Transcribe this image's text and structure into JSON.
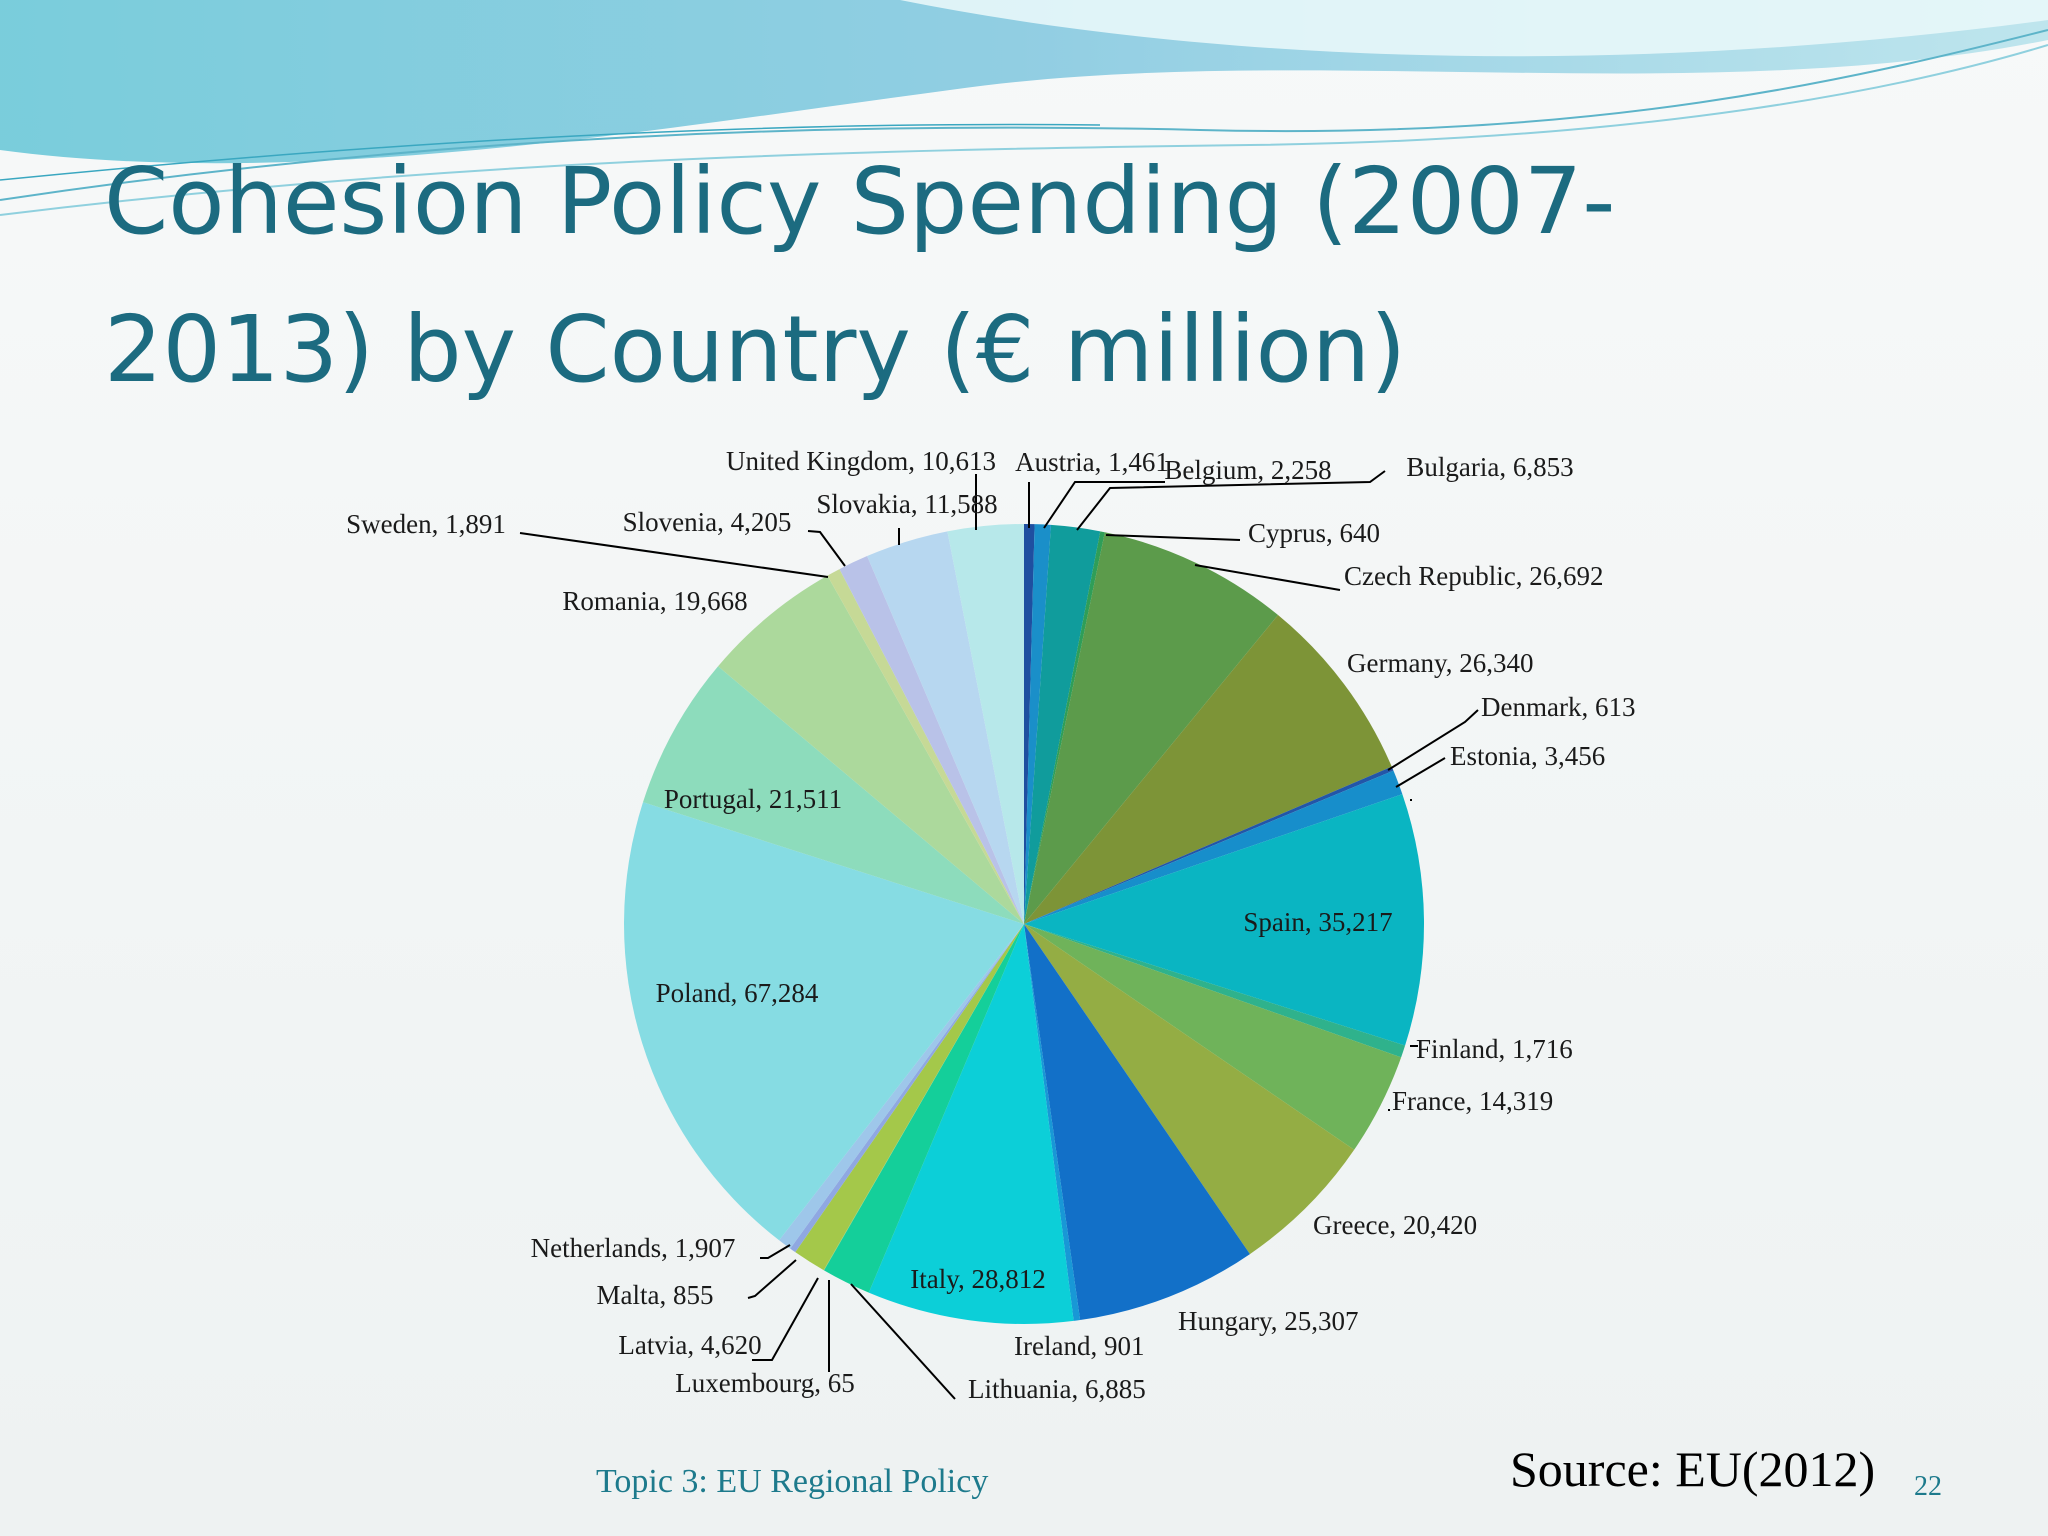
{
  "slide": {
    "title_line1": "Cohesion Policy Spending (2007-",
    "title_line2": "2013) by Country (€ million)",
    "footer_topic": "Topic 3: EU Regional Policy",
    "source": "Source: EU(2012)",
    "page_number": "22"
  },
  "colors": {
    "title": "#1c6b80",
    "footer": "#1d7a8c",
    "wave_top": "#7cc6da",
    "wave_light": "#b7e6ee"
  },
  "chart_data": {
    "type": "pie",
    "start_angle_deg": 0,
    "direction": "clockwise",
    "slices": [
      {
        "label": "Austria",
        "value": 1461,
        "text": "Austria, 1,461",
        "color": "#1f4fa0"
      },
      {
        "label": "Belgium",
        "value": 2258,
        "text": "Belgium, 2,258",
        "color": "#1a8fc9"
      },
      {
        "label": "Bulgaria",
        "value": 6853,
        "text": "Bulgaria, 6,853",
        "color": "#109c9c"
      },
      {
        "label": "Cyprus",
        "value": 640,
        "text": "Cyprus, 640",
        "color": "#2f9e58"
      },
      {
        "label": "Czech Republic",
        "value": 26692,
        "text": "Czech Republic, 26,692",
        "color": "#5c9b4b"
      },
      {
        "label": "Germany",
        "value": 26340,
        "text": "Germany, 26,340",
        "color": "#7d9437"
      },
      {
        "label": "Denmark",
        "value": 613,
        "text": "Denmark, 613",
        "color": "#2256a8"
      },
      {
        "label": "Estonia",
        "value": 3456,
        "text": "Estonia, 3,456",
        "color": "#178ecb"
      },
      {
        "label": "Spain",
        "value": 35217,
        "text": "Spain, 35,217",
        "color": "#0ab5c2"
      },
      {
        "label": "Finland",
        "value": 1716,
        "text": "Finland, 1,716",
        "color": "#2fb28c"
      },
      {
        "label": "France",
        "value": 14319,
        "text": "France, 14,319",
        "color": "#6fb35a"
      },
      {
        "label": "Greece",
        "value": 20420,
        "text": "Greece, 20,420",
        "color": "#94ad44"
      },
      {
        "label": "Hungary",
        "value": 25307,
        "text": "Hungary, 25,307",
        "color": "#1270c8"
      },
      {
        "label": "Ireland",
        "value": 901,
        "text": "Ireland, 901",
        "color": "#1898d6"
      },
      {
        "label": "Italy",
        "value": 28812,
        "text": "Italy, 28,812",
        "color": "#0ccfd8"
      },
      {
        "label": "Lithuania",
        "value": 6885,
        "text": "Lithuania, 6,885",
        "color": "#14cf9a"
      },
      {
        "label": "Luxembourg",
        "value": 65,
        "text": "Luxembourg, 65",
        "color": "#8ed26c"
      },
      {
        "label": "Latvia",
        "value": 4620,
        "text": "Latvia, 4,620",
        "color": "#a4c84a"
      },
      {
        "label": "Malta",
        "value": 855,
        "text": "Malta, 855",
        "color": "#8fa8e2"
      },
      {
        "label": "Netherlands",
        "value": 1907,
        "text": "Netherlands, 1,907",
        "color": "#9ec7ea"
      },
      {
        "label": "Poland",
        "value": 67284,
        "text": "Poland, 67,284",
        "color": "#86dce3"
      },
      {
        "label": "Portugal",
        "value": 21511,
        "text": "Portugal, 21,511",
        "color": "#8ddcbc"
      },
      {
        "label": "Romania",
        "value": 19668,
        "text": "Romania, 19,668",
        "color": "#acd99c"
      },
      {
        "label": "Sweden",
        "value": 1891,
        "text": "Sweden, 1,891",
        "color": "#c6d996"
      },
      {
        "label": "Slovenia",
        "value": 4205,
        "text": "Slovenia, 4,205",
        "color": "#b9c2e8"
      },
      {
        "label": "Slovakia",
        "value": 11588,
        "text": "Slovakia, 11,588",
        "color": "#b7d7f0"
      },
      {
        "label": "United Kingdom",
        "value": 10613,
        "text": "United Kingdom, 10,613",
        "color": "#b7e8ea"
      }
    ]
  }
}
